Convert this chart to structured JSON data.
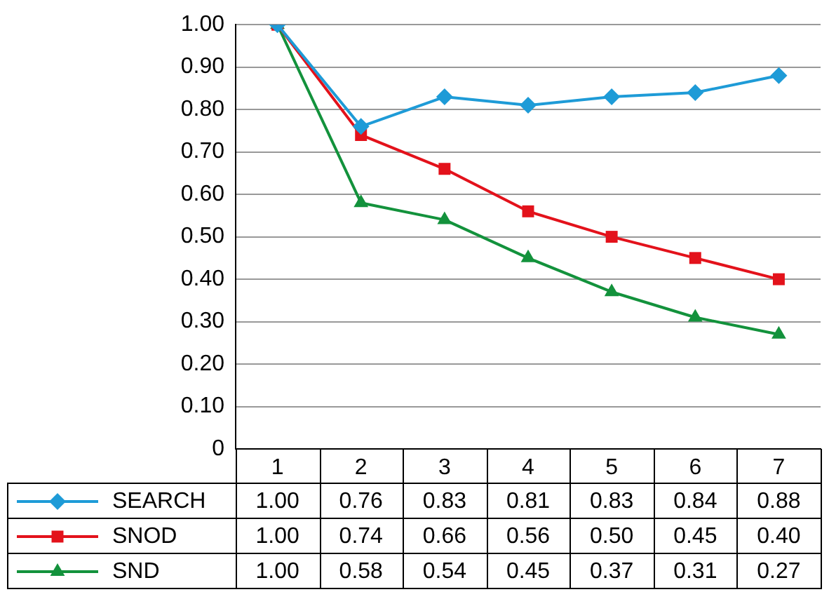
{
  "chart_data": {
    "type": "line",
    "categories": [
      "1",
      "2",
      "3",
      "4",
      "5",
      "6",
      "7"
    ],
    "series": [
      {
        "name": "SEARCH",
        "color": "#1e9bd7",
        "marker": "diamond",
        "values": [
          1.0,
          0.76,
          0.83,
          0.81,
          0.83,
          0.84,
          0.88
        ],
        "value_labels": [
          "1.00",
          "0.76",
          "0.83",
          "0.81",
          "0.83",
          "0.84",
          "0.88"
        ]
      },
      {
        "name": "SNOD",
        "color": "#e3121b",
        "marker": "square",
        "values": [
          1.0,
          0.74,
          0.66,
          0.56,
          0.5,
          0.45,
          0.4
        ],
        "value_labels": [
          "1.00",
          "0.74",
          "0.66",
          "0.56",
          "0.50",
          "0.45",
          "0.40"
        ]
      },
      {
        "name": "SND",
        "color": "#13923c",
        "marker": "triangle",
        "values": [
          1.0,
          0.58,
          0.54,
          0.45,
          0.37,
          0.31,
          0.27
        ],
        "value_labels": [
          "1.00",
          "0.58",
          "0.54",
          "0.45",
          "0.37",
          "0.31",
          "0.27"
        ]
      }
    ],
    "ylim": [
      0,
      1
    ],
    "yticks": [
      0,
      {
        "value": 0.1,
        "label": "0.10"
      },
      {
        "value": 0.2,
        "label": "0.20"
      },
      {
        "value": 0.3,
        "label": "0.30"
      },
      {
        "value": 0.4,
        "label": "0.40"
      },
      {
        "value": 0.5,
        "label": "0.50"
      },
      {
        "value": 0.6,
        "label": "0.60"
      },
      {
        "value": 0.7,
        "label": "0.70"
      },
      {
        "value": 0.8,
        "label": "0.80"
      },
      {
        "value": 0.9,
        "label": "0.90"
      },
      {
        "value": 1,
        "label": "1.00"
      }
    ],
    "grid": "y",
    "legend": "bottom",
    "line_style": "solid"
  }
}
